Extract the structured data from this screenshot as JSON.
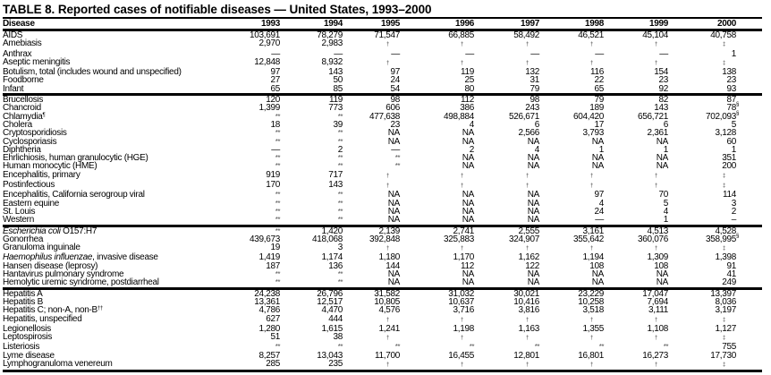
{
  "title": "TABLE 8. Reported cases of notifiable diseases — United States, 1993–2000",
  "columns": [
    "Disease",
    "1993",
    "1994",
    "1995",
    "1996",
    "1997",
    "1998",
    "1999",
    "2000"
  ],
  "rows": [
    {
      "label": "AIDS",
      "values": [
        "103,691",
        "78,279",
        "71,547",
        "66,885",
        "58,492",
        "46,521",
        "45,104",
        [
          "40,758",
          "*"
        ]
      ]
    },
    {
      "label": "Amebiasis",
      "values": [
        "2,970",
        "2,983",
        "†",
        "†",
        "†",
        "†",
        "†",
        "‡"
      ]
    },
    {
      "label": "Anthrax",
      "values": [
        "—",
        "—",
        "—",
        "—",
        "—",
        "—",
        "—",
        "1"
      ]
    },
    {
      "label": "Aseptic meningitis",
      "values": [
        "12,848",
        "8,932",
        "†",
        "†",
        "†",
        "†",
        "†",
        "‡"
      ]
    },
    {
      "label": "Botulism, total (includes wound and unspecified)",
      "values": [
        "97",
        "143",
        "97",
        "119",
        "132",
        "116",
        "154",
        "138"
      ]
    },
    {
      "label": "Foodborne",
      "indent": true,
      "values": [
        "27",
        "50",
        "24",
        "25",
        "31",
        "22",
        "23",
        "23"
      ]
    },
    {
      "label": "Infant",
      "indent": true,
      "group_end": true,
      "values": [
        "65",
        "85",
        "54",
        "80",
        "79",
        "65",
        "92",
        "93"
      ]
    },
    {
      "label": "Brucellosis",
      "values": [
        "120",
        "119",
        "98",
        "112",
        "98",
        "79",
        "82",
        "87"
      ]
    },
    {
      "label": "Chancroid",
      "values": [
        "1,399",
        "773",
        "606",
        "386",
        "243",
        "189",
        "143",
        [
          "78",
          "§"
        ]
      ]
    },
    {
      "label": "Chlamydia",
      "label_sup": "¶",
      "values": [
        "**",
        "**",
        "477,638",
        "498,884",
        "526,671",
        "604,420",
        "656,721",
        [
          "702,093",
          "§"
        ]
      ]
    },
    {
      "label": "Cholera",
      "values": [
        "18",
        "39",
        "23",
        "4",
        "6",
        "17",
        "6",
        "5"
      ]
    },
    {
      "label": "Cryptosporidiosis",
      "values": [
        "**",
        "**",
        "NA",
        "NA",
        "2,566",
        "3,793",
        "2,361",
        "3,128"
      ]
    },
    {
      "label": "Cyclosporiasis",
      "values": [
        "**",
        "**",
        "NA",
        "NA",
        "NA",
        "NA",
        "NA",
        "60"
      ]
    },
    {
      "label": "Diphtheria",
      "values": [
        "—",
        "2",
        "—",
        "2",
        "4",
        "1",
        "1",
        "1"
      ]
    },
    {
      "label": "Ehrlichiosis, human granulocytic (HGE)",
      "values": [
        "**",
        "**",
        "**",
        "NA",
        "NA",
        "NA",
        "NA",
        "351"
      ]
    },
    {
      "label": "Human monocytic (HME)",
      "indent": true,
      "values": [
        "**",
        "**",
        "**",
        "NA",
        "NA",
        "NA",
        "NA",
        "200"
      ]
    },
    {
      "label": "Encephalitis, primary",
      "values": [
        "919",
        "717",
        "†",
        "†",
        "†",
        "†",
        "†",
        "‡"
      ]
    },
    {
      "label": "Postinfectious",
      "indent": true,
      "values": [
        "170",
        "143",
        "†",
        "†",
        "†",
        "†",
        "†",
        "‡"
      ]
    },
    {
      "label": "Encephalitis, California serogroup viral",
      "values": [
        "**",
        "**",
        "NA",
        "NA",
        "NA",
        "97",
        "70",
        "114"
      ]
    },
    {
      "label": "Eastern equine",
      "indent": true,
      "values": [
        "**",
        "**",
        "NA",
        "NA",
        "NA",
        "4",
        "5",
        "3"
      ]
    },
    {
      "label": "St. Louis",
      "indent": true,
      "values": [
        "**",
        "**",
        "NA",
        "NA",
        "NA",
        "24",
        "4",
        "2"
      ]
    },
    {
      "label": "Western",
      "indent": true,
      "group_end": true,
      "values": [
        "**",
        "**",
        "NA",
        "NA",
        "NA",
        "—",
        "1",
        "–"
      ]
    },
    {
      "label_italic": "Escherichia coli",
      "label": " O157:H7",
      "values": [
        "**",
        "1,420",
        "2,139",
        "2,741",
        "2,555",
        "3,161",
        "4,513",
        "4,528"
      ]
    },
    {
      "label": "Gonorrhea",
      "values": [
        "439,673",
        "418,068",
        "392,848",
        "325,883",
        "324,907",
        "355,642",
        "360,076",
        [
          "358,995",
          "§"
        ]
      ]
    },
    {
      "label": "Granuloma inguinale",
      "values": [
        "19",
        "3",
        "†",
        "†",
        "†",
        "†",
        "†",
        "‡"
      ]
    },
    {
      "label_italic": "Haemophilus influenzae",
      "label": ", invasive disease",
      "values": [
        "1,419",
        "1,174",
        "1,180",
        "1,170",
        "1,162",
        "1,194",
        "1,309",
        "1,398"
      ]
    },
    {
      "label": "Hansen disease (leprosy)",
      "values": [
        "187",
        "136",
        "144",
        "112",
        "122",
        "108",
        "108",
        "91"
      ]
    },
    {
      "label": "Hantavirus pulmonary syndrome",
      "values": [
        "**",
        "**",
        "NA",
        "NA",
        "NA",
        "NA",
        "NA",
        "41"
      ]
    },
    {
      "label": "Hemolytic uremic syndrome, postdiarrheal",
      "group_end": true,
      "values": [
        "**",
        "**",
        "NA",
        "NA",
        "NA",
        "NA",
        "NA",
        "249"
      ]
    },
    {
      "label": "Hepatitis A",
      "values": [
        "24,238",
        "26,796",
        "31,582",
        "31,032",
        "30,021",
        "23,229",
        "17,047",
        "13,397"
      ]
    },
    {
      "label": "Hepatitis B",
      "values": [
        "13,361",
        "12,517",
        "10,805",
        "10,637",
        "10,416",
        "10,258",
        "7,694",
        "8,036"
      ]
    },
    {
      "label": "Hepatitis C; non-A, non-B",
      "label_sup": "††",
      "values": [
        "4,786",
        "4,470",
        "4,576",
        "3,716",
        "3,816",
        "3,518",
        "3,111",
        "3,197"
      ]
    },
    {
      "label": "Hepatitis, unspecified",
      "values": [
        "627",
        "444",
        "†",
        "†",
        "†",
        "†",
        "†",
        "‡"
      ]
    },
    {
      "label": "Legionellosis",
      "values": [
        "1,280",
        "1,615",
        "1,241",
        "1,198",
        "1,163",
        "1,355",
        "1,108",
        "1,127"
      ]
    },
    {
      "label": "Leptospirosis",
      "values": [
        "51",
        "38",
        "†",
        "†",
        "†",
        "†",
        "†",
        "‡"
      ]
    },
    {
      "label": "Listeriosis",
      "values": [
        "**",
        "**",
        "**",
        "**",
        "**",
        "**",
        "**",
        "755"
      ]
    },
    {
      "label": "Lyme disease",
      "values": [
        "8,257",
        "13,043",
        "11,700",
        "16,455",
        "12,801",
        "16,801",
        "16,273",
        "17,730"
      ]
    },
    {
      "label": "Lymphogranuloma venereum",
      "group_end": true,
      "values": [
        "285",
        "235",
        "†",
        "†",
        "†",
        "†",
        "†",
        "‡"
      ]
    }
  ]
}
